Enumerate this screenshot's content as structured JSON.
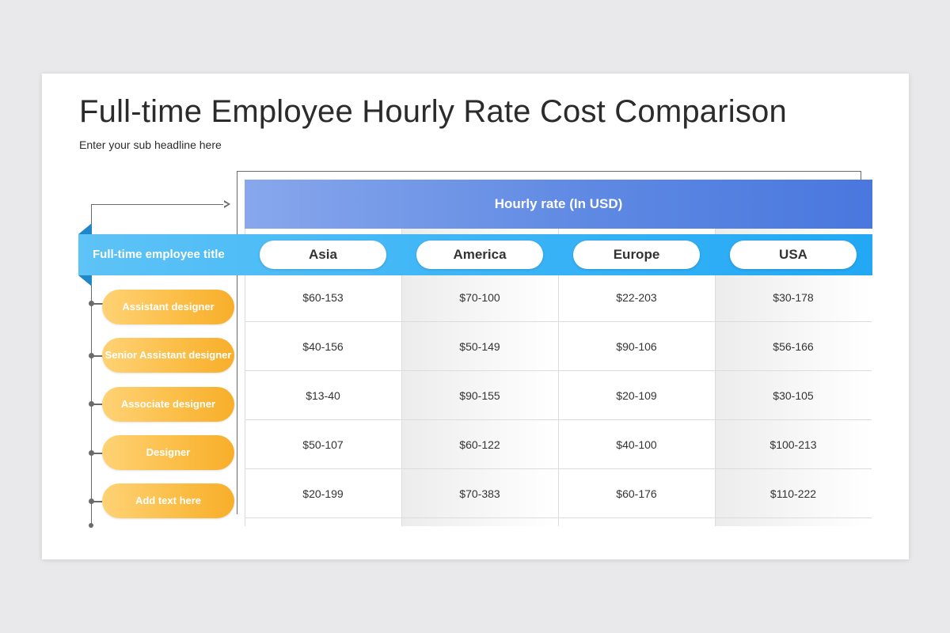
{
  "title": "Full-time Employee Hourly Rate Cost Comparison",
  "subtitle": "Enter your sub headline here",
  "table": {
    "header": "Hourly rate (In USD)",
    "row_header": "Full-time employee title",
    "regions": [
      "Asia",
      "America",
      "Europe",
      "USA"
    ],
    "rows": [
      {
        "title": "Assistant designer",
        "values": [
          "$60-153",
          "$70-100",
          "$22-203",
          "$30-178"
        ]
      },
      {
        "title": "Senior Assistant designer",
        "values": [
          "$40-156",
          "$50-149",
          "$90-106",
          "$56-166"
        ]
      },
      {
        "title": "Associate designer",
        "values": [
          "$13-40",
          "$90-155",
          "$20-109",
          "$30-105"
        ]
      },
      {
        "title": "Designer",
        "values": [
          "$50-107",
          "$60-122",
          "$40-100",
          "$100-213"
        ]
      },
      {
        "title": "Add text here",
        "values": [
          "$20-199",
          "$70-383",
          "$60-176",
          "$110-222"
        ]
      }
    ]
  },
  "colors": {
    "header_gradient": [
      "#88a7ec",
      "#4a77de"
    ],
    "region_bar": [
      "#5ec3f6",
      "#22a8f4"
    ],
    "role_pill": [
      "#ffd275",
      "#f8ae2a"
    ]
  }
}
